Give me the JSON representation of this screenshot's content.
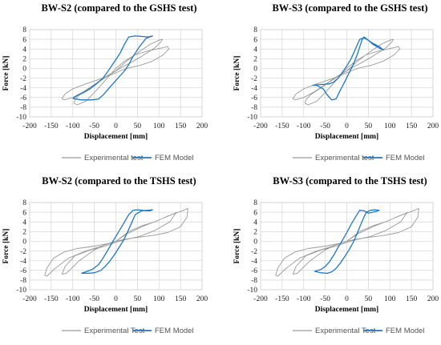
{
  "chart_data": [
    {
      "type": "line",
      "title": "BW-S2 (compared to the GSHS test)",
      "xlabel": "Displacement [mm]",
      "ylabel": "Force [kN]",
      "xlim": [
        -200,
        200
      ],
      "ylim": [
        -10,
        8
      ],
      "xticks": [
        "-200",
        "-150",
        "-100",
        "-50",
        "0",
        "50",
        "100",
        "150",
        "200"
      ],
      "yticks": [
        "8",
        "6",
        "4",
        "2",
        "0",
        "-2",
        "-4",
        "-6",
        "-8",
        "-10"
      ],
      "grid": true,
      "legend_position": "bottom",
      "series": [
        {
          "name": "Experimental test",
          "color": "#9a9a9a",
          "width": 0.9,
          "x": [
            0,
            20,
            45,
            70,
            95,
            110,
            120,
            123,
            110,
            85,
            55,
            30,
            10,
            -10,
            -40,
            -70,
            -100,
            -118,
            -125,
            -120,
            -100,
            -75,
            -45,
            -20,
            0,
            25,
            55,
            80,
            100,
            108,
            105,
            90,
            60,
            35,
            15,
            -5,
            -35,
            -60,
            -85,
            -95,
            -97,
            -90,
            -70,
            -45,
            -20,
            0
          ],
          "y": [
            0,
            1.5,
            2.8,
            3.5,
            4.0,
            4.3,
            4.5,
            4.0,
            2.8,
            1.5,
            0.6,
            0.1,
            -0.5,
            -1.3,
            -2.3,
            -3.2,
            -4.2,
            -5.3,
            -6.2,
            -6.5,
            -6.0,
            -4.8,
            -3.0,
            -1.5,
            -0.5,
            1.5,
            3.5,
            5.0,
            5.8,
            6.0,
            5.5,
            4.2,
            2.5,
            1.2,
            0.3,
            -0.8,
            -2.5,
            -4.0,
            -5.5,
            -6.5,
            -7.2,
            -7.5,
            -6.8,
            -4.5,
            -2.0,
            0
          ]
        },
        {
          "name": "FEM Model",
          "color": "#1f77c4",
          "width": 1.3,
          "x": [
            -100,
            -80,
            -55,
            -40,
            -30,
            -20,
            -10,
            0,
            10,
            20,
            30,
            40,
            55,
            70,
            85,
            80,
            75,
            60,
            45,
            30,
            20,
            10,
            0,
            -10,
            -20,
            -30,
            -45,
            -60,
            -75,
            -90,
            -100
          ],
          "y": [
            -6.2,
            -6.5,
            -6.5,
            -6.3,
            -5.5,
            -4.5,
            -3.5,
            -2.5,
            -1.5,
            -0.5,
            0.8,
            2.5,
            4.5,
            6.2,
            6.7,
            6.6,
            6.5,
            6.6,
            6.7,
            6.5,
            5.0,
            3.2,
            1.8,
            0.5,
            -0.8,
            -2.0,
            -3.2,
            -4.2,
            -5.0,
            -5.6,
            -6.2
          ]
        }
      ]
    },
    {
      "type": "line",
      "title": "BW-S3 (compared to the GSHS test)",
      "xlabel": "Displacement [mm]",
      "ylabel": "Force [kN]",
      "xlim": [
        -200,
        200
      ],
      "ylim": [
        -10,
        8
      ],
      "xticks": [
        "-200",
        "-150",
        "-100",
        "-50",
        "0",
        "50",
        "100",
        "150",
        "200"
      ],
      "yticks": [
        "8",
        "6",
        "4",
        "2",
        "0",
        "-2",
        "-4",
        "-6",
        "-8",
        "-10"
      ],
      "grid": true,
      "legend_position": "bottom",
      "series": [
        {
          "name": "Experimental test",
          "color": "#9a9a9a",
          "width": 0.9,
          "x": [
            0,
            20,
            45,
            70,
            95,
            110,
            120,
            123,
            110,
            85,
            55,
            30,
            10,
            -10,
            -40,
            -70,
            -100,
            -118,
            -125,
            -120,
            -100,
            -75,
            -45,
            -20,
            0,
            25,
            55,
            80,
            100,
            108,
            105,
            90,
            60,
            35,
            15,
            -5,
            -35,
            -60,
            -85,
            -95,
            -97,
            -90,
            -70,
            -45,
            -20,
            0
          ],
          "y": [
            0,
            1.5,
            2.8,
            3.5,
            4.0,
            4.3,
            4.5,
            4.0,
            2.8,
            1.5,
            0.6,
            0.1,
            -0.5,
            -1.3,
            -2.3,
            -3.2,
            -4.2,
            -5.3,
            -6.2,
            -6.5,
            -6.0,
            -4.8,
            -3.0,
            -1.5,
            -0.5,
            1.5,
            3.5,
            5.0,
            5.8,
            6.0,
            5.5,
            4.2,
            2.5,
            1.2,
            0.3,
            -0.8,
            -2.5,
            -4.0,
            -5.5,
            -6.5,
            -7.2,
            -7.5,
            -6.8,
            -4.5,
            -2.0,
            0
          ]
        },
        {
          "name": "FEM Model",
          "color": "#1f77c4",
          "width": 1.3,
          "x": [
            -80,
            -70,
            -55,
            -45,
            -35,
            -25,
            -15,
            -5,
            5,
            15,
            25,
            35,
            40,
            50,
            60,
            75,
            85,
            75,
            60,
            50,
            40,
            30,
            20,
            10,
            0,
            -10,
            -20,
            -30,
            -40,
            -55,
            -70,
            -80
          ],
          "y": [
            -3.5,
            -3.5,
            -4.2,
            -5.5,
            -6.5,
            -6.3,
            -4.5,
            -2.8,
            -1.0,
            0.8,
            3.0,
            5.8,
            6.5,
            5.8,
            5.0,
            4.2,
            3.8,
            4.5,
            5.2,
            5.8,
            6.3,
            6.0,
            4.0,
            2.0,
            0.5,
            -0.8,
            -2.0,
            -2.8,
            -3.2,
            -3.3,
            -3.4,
            -3.5
          ]
        }
      ]
    },
    {
      "type": "line",
      "title": "BW-S2 (compared to the TSHS test)",
      "xlabel": "Displacement [mm]",
      "ylabel": "Force [kN]",
      "xlim": [
        -200,
        200
      ],
      "ylim": [
        -10,
        8
      ],
      "xticks": [
        "-200",
        "-150",
        "-100",
        "-50",
        "0",
        "50",
        "100",
        "150",
        "200"
      ],
      "yticks": [
        "8",
        "6",
        "4",
        "2",
        "0",
        "-2",
        "-4",
        "-6",
        "-8",
        "-10"
      ],
      "grid": true,
      "legend_position": "bottom",
      "series": [
        {
          "name": "Experimental Test",
          "color": "#9a9a9a",
          "width": 0.9,
          "x": [
            0,
            30,
            60,
            90,
            110,
            130,
            145,
            155,
            162,
            167,
            165,
            150,
            120,
            85,
            50,
            20,
            0,
            -20,
            -50,
            -90,
            -120,
            -145,
            -160,
            -165,
            -160,
            -140,
            -110,
            -70,
            -40,
            -20,
            0,
            25,
            60,
            95,
            120,
            138,
            140,
            125,
            90,
            55,
            25,
            0,
            -25,
            -60,
            -95,
            -118,
            -125,
            -115,
            -85,
            -50,
            -20,
            0
          ],
          "y": [
            0,
            2.0,
            3.2,
            4.0,
            4.8,
            5.5,
            6.0,
            6.3,
            6.6,
            6.8,
            5.0,
            3.0,
            1.8,
            1.2,
            0.8,
            0.4,
            0,
            -0.5,
            -1.0,
            -1.5,
            -2.2,
            -3.5,
            -5.5,
            -7.0,
            -7.2,
            -5.5,
            -3.5,
            -2.0,
            -1.2,
            -0.6,
            0,
            1.5,
            3.0,
            4.2,
            5.2,
            5.8,
            6.0,
            4.0,
            2.2,
            1.0,
            0.4,
            -0.2,
            -1.0,
            -1.8,
            -3.0,
            -5.2,
            -6.8,
            -6.6,
            -4.0,
            -1.8,
            -0.5,
            0
          ]
        },
        {
          "name": "FEM Model",
          "color": "#1f77c4",
          "width": 1.3,
          "x": [
            -80,
            -65,
            -50,
            -35,
            -25,
            -15,
            -5,
            5,
            15,
            25,
            35,
            45,
            60,
            75,
            85,
            80,
            70,
            60,
            50,
            40,
            30,
            20,
            10,
            0,
            -10,
            -20,
            -30,
            -40,
            -55,
            -70,
            -80
          ],
          "y": [
            -6.6,
            -6.6,
            -6.5,
            -6.0,
            -5.2,
            -4.2,
            -3.0,
            -1.6,
            -0.2,
            1.5,
            3.5,
            5.5,
            6.3,
            6.4,
            6.5,
            6.3,
            6.3,
            6.4,
            6.5,
            6.4,
            5.5,
            4.0,
            2.5,
            1.0,
            -0.5,
            -2.0,
            -3.5,
            -4.8,
            -5.8,
            -6.3,
            -6.6
          ]
        }
      ]
    },
    {
      "type": "line",
      "title": "BW-S3 (compared to the TSHS test)",
      "xlabel": "Displacement [mm]",
      "ylabel": "Force [kN]",
      "xlim": [
        -200,
        200
      ],
      "ylim": [
        -10,
        8
      ],
      "xticks": [
        "-200",
        "-150",
        "-100",
        "-50",
        "0",
        "50",
        "100",
        "150",
        "200"
      ],
      "yticks": [
        "8",
        "6",
        "4",
        "2",
        "0",
        "-2",
        "-4",
        "-6",
        "-8",
        "-10"
      ],
      "grid": true,
      "legend_position": "bottom",
      "series": [
        {
          "name": "Experimental Test",
          "color": "#9a9a9a",
          "width": 0.9,
          "x": [
            0,
            30,
            60,
            90,
            110,
            130,
            145,
            155,
            162,
            167,
            165,
            150,
            120,
            85,
            50,
            20,
            0,
            -20,
            -50,
            -90,
            -120,
            -145,
            -160,
            -165,
            -160,
            -140,
            -110,
            -70,
            -40,
            -20,
            0,
            25,
            60,
            95,
            120,
            138,
            140,
            125,
            90,
            55,
            25,
            0,
            -25,
            -60,
            -95,
            -118,
            -125,
            -115,
            -85,
            -50,
            -20,
            0
          ],
          "y": [
            0,
            2.0,
            3.2,
            4.0,
            4.8,
            5.5,
            6.0,
            6.3,
            6.6,
            6.8,
            5.0,
            3.0,
            1.8,
            1.2,
            0.8,
            0.4,
            0,
            -0.5,
            -1.0,
            -1.5,
            -2.2,
            -3.5,
            -5.5,
            -7.0,
            -7.2,
            -5.5,
            -3.5,
            -2.0,
            -1.2,
            -0.6,
            0,
            1.5,
            3.0,
            4.2,
            5.2,
            5.8,
            6.0,
            4.0,
            2.2,
            1.0,
            0.4,
            -0.2,
            -1.0,
            -1.8,
            -3.0,
            -5.2,
            -6.8,
            -6.6,
            -4.0,
            -1.8,
            -0.5,
            0
          ]
        },
        {
          "name": "FEM Model",
          "color": "#1f77c4",
          "width": 1.3,
          "x": [
            -75,
            -60,
            -45,
            -35,
            -25,
            -15,
            -5,
            5,
            15,
            25,
            35,
            45,
            55,
            65,
            75,
            70,
            60,
            50,
            40,
            30,
            20,
            10,
            0,
            -10,
            -20,
            -30,
            -40,
            -50,
            -60,
            -75
          ],
          "y": [
            -6.2,
            -6.5,
            -6.6,
            -6.3,
            -5.6,
            -4.5,
            -3.2,
            -1.8,
            -0.2,
            1.8,
            4.0,
            6.0,
            6.4,
            6.5,
            6.4,
            6.2,
            6.0,
            5.8,
            6.3,
            6.4,
            5.0,
            3.5,
            1.8,
            0.2,
            -1.2,
            -2.8,
            -4.2,
            -5.2,
            -5.8,
            -6.2
          ]
        }
      ]
    }
  ]
}
